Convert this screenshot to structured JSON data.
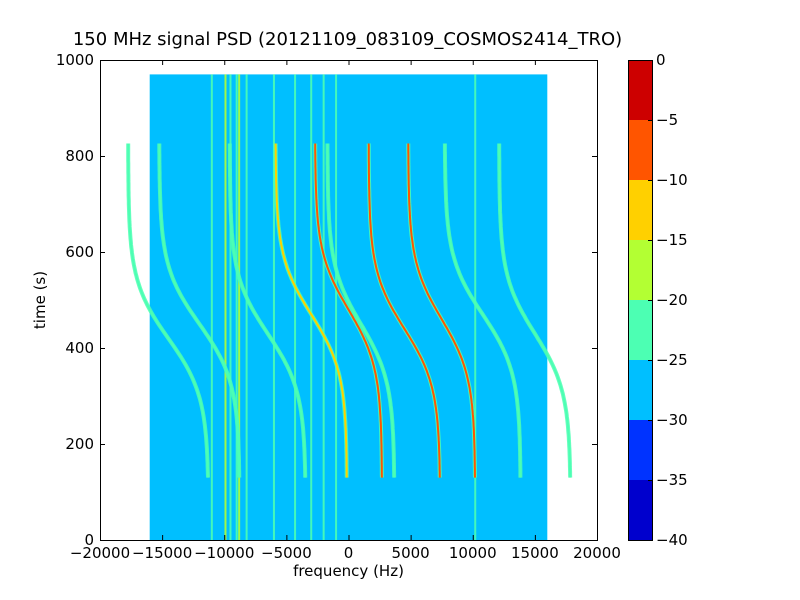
{
  "chart_data": {
    "type": "heatmap",
    "title": "150 MHz signal PSD (20121109_083109_COSMOS2414_TRO)",
    "xlabel": "frequency (Hz)",
    "ylabel": "time (s)",
    "xlim": [
      -20000,
      20000
    ],
    "ylim": [
      0,
      1000
    ],
    "x_ticks": [
      -20000,
      -15000,
      -10000,
      -5000,
      0,
      5000,
      10000,
      15000,
      20000
    ],
    "y_ticks": [
      0,
      200,
      400,
      600,
      800,
      1000
    ],
    "data_extent": {
      "x": [
        -16000,
        16000
      ],
      "y": [
        0,
        970
      ]
    },
    "background_level": -28,
    "colorbar": {
      "range": [
        -40,
        0
      ],
      "ticks": [
        0,
        -5,
        -10,
        -15,
        -20,
        -25,
        -30,
        -35,
        -40
      ],
      "levels": [
        {
          "from": -40,
          "to": -35,
          "color": "#0000cd"
        },
        {
          "from": -35,
          "to": -30,
          "color": "#0033ff"
        },
        {
          "from": -30,
          "to": -25,
          "color": "#00bfff"
        },
        {
          "from": -25,
          "to": -20,
          "color": "#4cffb3"
        },
        {
          "from": -20,
          "to": -15,
          "color": "#b3ff33"
        },
        {
          "from": -15,
          "to": -10,
          "color": "#ffd000"
        },
        {
          "from": -10,
          "to": -5,
          "color": "#ff5500"
        },
        {
          "from": -5,
          "to": 0,
          "color": "#cd0000"
        }
      ]
    },
    "vertical_lines": [
      {
        "x": -11000,
        "level": -20
      },
      {
        "x": -9900,
        "level": -18
      },
      {
        "x": -9500,
        "level": -22
      },
      {
        "x": -9000,
        "level": -20
      },
      {
        "x": -8800,
        "level": -18
      },
      {
        "x": -8200,
        "level": -22
      },
      {
        "x": -6000,
        "level": -22
      },
      {
        "x": -4300,
        "level": -22
      },
      {
        "x": -3000,
        "level": -22
      },
      {
        "x": -2000,
        "level": -22
      },
      {
        "x": -1000,
        "level": -22
      },
      {
        "x": 10200,
        "level": -22
      }
    ],
    "series": [
      {
        "center_freq": -12000,
        "center_time": 450,
        "width": 3600,
        "level": -20
      },
      {
        "center_freq": -6500,
        "center_time": 430,
        "width": 3400,
        "level": -20
      },
      {
        "center_freq": -3000,
        "center_time": 470,
        "width": 3200,
        "level": -12
      },
      {
        "center_freq": 0,
        "center_time": 480,
        "width": 3000,
        "level": -8
      },
      {
        "center_freq": 1000,
        "center_time": 450,
        "width": 3000,
        "level": -20
      },
      {
        "center_freq": 4500,
        "center_time": 440,
        "width": 3200,
        "level": -8
      },
      {
        "center_freq": 7500,
        "center_time": 460,
        "width": 3000,
        "level": -8
      },
      {
        "center_freq": 10800,
        "center_time": 470,
        "width": 3400,
        "level": -20
      },
      {
        "center_freq": 15000,
        "center_time": 430,
        "width": 3200,
        "level": -20
      },
      {
        "center_freq": -14500,
        "center_time": 420,
        "width": 3600,
        "level": -20
      }
    ]
  }
}
